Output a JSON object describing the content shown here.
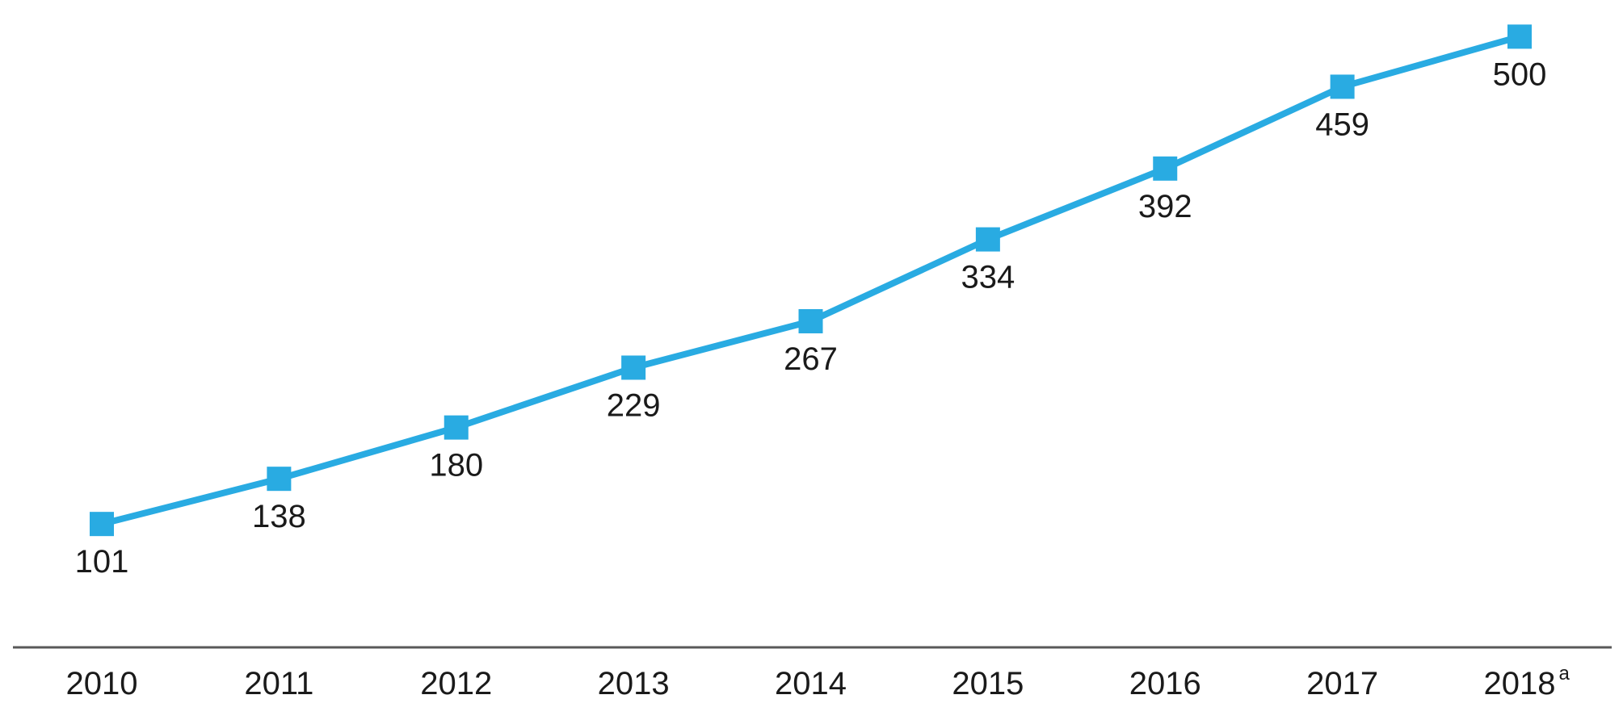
{
  "chart_data": {
    "type": "line",
    "categories": [
      "2010",
      "2011",
      "2012",
      "2013",
      "2014",
      "2015",
      "2016",
      "2017",
      "2018"
    ],
    "category_superscripts": [
      "",
      "",
      "",
      "",
      "",
      "",
      "",
      "",
      "a"
    ],
    "series": [
      {
        "values": [
          101,
          138,
          180,
          229,
          267,
          334,
          392,
          459,
          500
        ],
        "color": "#29abe2",
        "marker": "square"
      }
    ],
    "data_labels": [
      "101",
      "138",
      "180",
      "229",
      "267",
      "334",
      "392",
      "459",
      "500"
    ],
    "title": "",
    "xlabel": "",
    "ylabel": "",
    "ylim": [
      0,
      530
    ],
    "grid": false,
    "legend": "none",
    "axis_color": "#595959",
    "label_color": "#1a1a1a"
  }
}
